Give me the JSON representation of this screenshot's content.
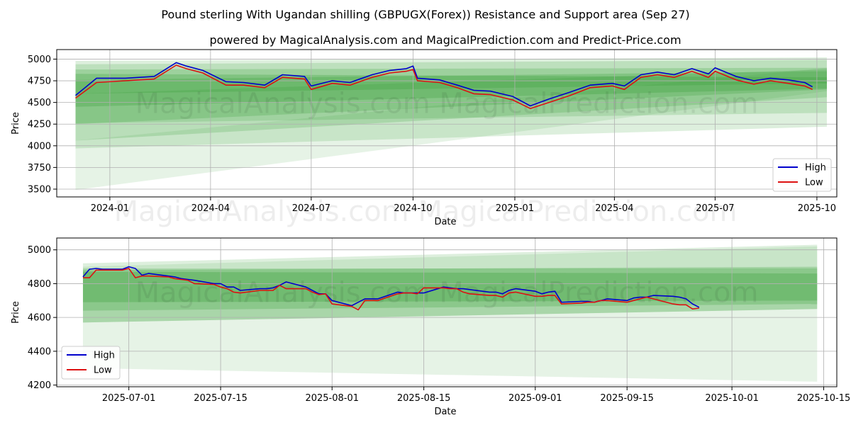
{
  "title": "Pound sterling With Ugandan shilling (GBPUGX(Forex)) Resistance and Support area (Sep 27)",
  "subtitle": "powered by MagicalAnalysis.com and MagicalPrediction.com and Predict-Price.com",
  "watermarks": [
    "MagicalAnalysis.com",
    "MagicalPrediction.com"
  ],
  "colors": {
    "high": "#0000cc",
    "low": "#dd1111",
    "band": "#2e9a2e",
    "grid": "#b0b0b0"
  },
  "chart_data": [
    {
      "type": "line",
      "name": "full-period",
      "xlabel": "Date",
      "ylabel": "Price",
      "x_range": [
        "2023-11-14",
        "2025-10-19"
      ],
      "ylim": [
        3410,
        5110
      ],
      "x_ticks": [
        "2024-01",
        "2024-04",
        "2024-07",
        "2024-10",
        "2025-01",
        "2025-04",
        "2025-07",
        "2025-10"
      ],
      "x_tick_dates": [
        "2024-01-01",
        "2024-04-01",
        "2024-07-01",
        "2024-10-01",
        "2025-01-01",
        "2025-04-01",
        "2025-07-01",
        "2025-10-01"
      ],
      "y_ticks": [
        3500,
        3750,
        4000,
        4250,
        4500,
        4750,
        5000
      ],
      "grid": true,
      "legend": "bottom-right",
      "bands_x": [
        "2023-12-01",
        "2025-10-10"
      ],
      "bands": [
        {
          "start": [
            3490,
            4060
          ],
          "end": [
            4630,
            4900
          ],
          "alpha": 0.12
        },
        {
          "start": [
            3970,
            4980
          ],
          "end": [
            4220,
            5020
          ],
          "alpha": 0.16
        },
        {
          "start": [
            4260,
            4940
          ],
          "end": [
            4380,
            4990
          ],
          "alpha": 0.18
        },
        {
          "start": [
            4060,
            4600
          ],
          "end": [
            4560,
            4880
          ],
          "alpha": 0.2
        },
        {
          "start": [
            4250,
            4880
          ],
          "end": [
            4650,
            4900
          ],
          "alpha": 0.22
        },
        {
          "start": [
            4450,
            4830
          ],
          "end": [
            4660,
            4790
          ],
          "alpha": 0.26
        },
        {
          "start": [
            4600,
            4760
          ],
          "end": [
            4720,
            4860
          ],
          "alpha": 0.24
        }
      ],
      "series": [
        {
          "name": "High",
          "x": [
            "2023-12-01",
            "2023-12-20",
            "2024-01-15",
            "2024-02-10",
            "2024-03-01",
            "2024-03-10",
            "2024-03-25",
            "2024-04-15",
            "2024-05-01",
            "2024-05-20",
            "2024-06-05",
            "2024-06-25",
            "2024-07-01",
            "2024-07-20",
            "2024-08-05",
            "2024-08-25",
            "2024-09-10",
            "2024-09-25",
            "2024-10-01",
            "2024-10-05",
            "2024-10-25",
            "2024-11-10",
            "2024-11-25",
            "2024-12-10",
            "2024-12-30",
            "2025-01-15",
            "2025-02-01",
            "2025-02-20",
            "2025-03-10",
            "2025-03-30",
            "2025-04-10",
            "2025-04-25",
            "2025-05-10",
            "2025-05-25",
            "2025-06-10",
            "2025-06-25",
            "2025-07-01",
            "2025-07-20",
            "2025-08-05",
            "2025-08-20",
            "2025-09-05",
            "2025-09-20",
            "2025-09-27"
          ],
          "values": [
            4580,
            4780,
            4780,
            4800,
            4960,
            4920,
            4870,
            4740,
            4730,
            4700,
            4820,
            4800,
            4690,
            4750,
            4730,
            4820,
            4870,
            4890,
            4920,
            4780,
            4760,
            4700,
            4640,
            4630,
            4570,
            4460,
            4540,
            4620,
            4700,
            4720,
            4690,
            4820,
            4850,
            4820,
            4890,
            4830,
            4900,
            4800,
            4750,
            4780,
            4760,
            4730,
            4680
          ]
        },
        {
          "name": "Low",
          "x": [
            "2023-12-01",
            "2023-12-20",
            "2024-01-15",
            "2024-02-10",
            "2024-03-01",
            "2024-03-10",
            "2024-03-25",
            "2024-04-15",
            "2024-05-01",
            "2024-05-20",
            "2024-06-05",
            "2024-06-25",
            "2024-07-01",
            "2024-07-20",
            "2024-08-05",
            "2024-08-25",
            "2024-09-10",
            "2024-09-25",
            "2024-10-01",
            "2024-10-05",
            "2024-10-25",
            "2024-11-10",
            "2024-11-25",
            "2024-12-10",
            "2024-12-30",
            "2025-01-15",
            "2025-02-01",
            "2025-02-20",
            "2025-03-10",
            "2025-03-30",
            "2025-04-10",
            "2025-04-25",
            "2025-05-10",
            "2025-05-25",
            "2025-06-10",
            "2025-06-25",
            "2025-07-01",
            "2025-07-20",
            "2025-08-05",
            "2025-08-20",
            "2025-09-05",
            "2025-09-20",
            "2025-09-27"
          ],
          "values": [
            4550,
            4730,
            4750,
            4770,
            4930,
            4890,
            4840,
            4700,
            4700,
            4670,
            4790,
            4770,
            4650,
            4720,
            4700,
            4790,
            4840,
            4860,
            4880,
            4750,
            4730,
            4670,
            4600,
            4590,
            4530,
            4430,
            4500,
            4580,
            4670,
            4690,
            4650,
            4790,
            4820,
            4790,
            4860,
            4790,
            4860,
            4760,
            4710,
            4750,
            4720,
            4690,
            4650
          ]
        }
      ]
    },
    {
      "type": "line",
      "name": "recent-period",
      "xlabel": "Date",
      "ylabel": "Price",
      "x_range": [
        "2025-06-20",
        "2025-10-17"
      ],
      "ylim": [
        4190,
        5070
      ],
      "x_ticks": [
        "2025-07-01",
        "2025-07-15",
        "2025-08-01",
        "2025-08-15",
        "2025-09-01",
        "2025-09-15",
        "2025-10-01",
        "2025-10-15"
      ],
      "y_ticks": [
        4200,
        4400,
        4600,
        4800,
        5000
      ],
      "grid": true,
      "legend": "bottom-left",
      "bands_x": [
        "2025-06-24",
        "2025-10-14"
      ],
      "bands": [
        {
          "start": [
            4300,
            4900
          ],
          "end": [
            4220,
            5020
          ],
          "alpha": 0.12
        },
        {
          "start": [
            4570,
            4920
          ],
          "end": [
            4650,
            5030
          ],
          "alpha": 0.16
        },
        {
          "start": [
            4570,
            4890
          ],
          "end": [
            4650,
            4890
          ],
          "alpha": 0.2
        },
        {
          "start": [
            4640,
            4880
          ],
          "end": [
            4680,
            4900
          ],
          "alpha": 0.24
        },
        {
          "start": [
            4690,
            4870
          ],
          "end": [
            4700,
            4860
          ],
          "alpha": 0.28
        }
      ],
      "series": [
        {
          "name": "High",
          "x": [
            "2025-06-24",
            "2025-06-25",
            "2025-06-26",
            "2025-06-27",
            "2025-06-30",
            "2025-07-01",
            "2025-07-02",
            "2025-07-03",
            "2025-07-04",
            "2025-07-07",
            "2025-07-08",
            "2025-07-09",
            "2025-07-10",
            "2025-07-11",
            "2025-07-14",
            "2025-07-15",
            "2025-07-16",
            "2025-07-17",
            "2025-07-18",
            "2025-07-21",
            "2025-07-22",
            "2025-07-23",
            "2025-07-24",
            "2025-07-25",
            "2025-07-28",
            "2025-07-29",
            "2025-07-30",
            "2025-07-31",
            "2025-08-01",
            "2025-08-04",
            "2025-08-05",
            "2025-08-06",
            "2025-08-07",
            "2025-08-08",
            "2025-08-11",
            "2025-08-12",
            "2025-08-13",
            "2025-08-14",
            "2025-08-15",
            "2025-08-18",
            "2025-08-19",
            "2025-08-20",
            "2025-08-21",
            "2025-08-22",
            "2025-08-25",
            "2025-08-26",
            "2025-08-27",
            "2025-08-28",
            "2025-08-29",
            "2025-09-01",
            "2025-09-02",
            "2025-09-03",
            "2025-09-04",
            "2025-09-05",
            "2025-09-08",
            "2025-09-09",
            "2025-09-10",
            "2025-09-11",
            "2025-09-12",
            "2025-09-15",
            "2025-09-16",
            "2025-09-17",
            "2025-09-18",
            "2025-09-19",
            "2025-09-22",
            "2025-09-23",
            "2025-09-24",
            "2025-09-25",
            "2025-09-26"
          ],
          "values": [
            4840,
            4885,
            4890,
            4885,
            4885,
            4900,
            4890,
            4850,
            4860,
            4845,
            4840,
            4830,
            4825,
            4820,
            4800,
            4800,
            4780,
            4780,
            4760,
            4770,
            4770,
            4775,
            4790,
            4810,
            4780,
            4760,
            4740,
            4740,
            4700,
            4670,
            4690,
            4710,
            4710,
            4710,
            4750,
            4745,
            4745,
            4745,
            4745,
            4780,
            4775,
            4770,
            4770,
            4765,
            4750,
            4750,
            4740,
            4760,
            4770,
            4755,
            4740,
            4750,
            4755,
            4690,
            4695,
            4695,
            4690,
            4700,
            4710,
            4700,
            4715,
            4720,
            4720,
            4730,
            4725,
            4720,
            4710,
            4680,
            4660
          ]
        },
        {
          "name": "Low",
          "x": [
            "2025-06-24",
            "2025-06-25",
            "2025-06-26",
            "2025-06-27",
            "2025-06-30",
            "2025-07-01",
            "2025-07-02",
            "2025-07-03",
            "2025-07-04",
            "2025-07-07",
            "2025-07-08",
            "2025-07-09",
            "2025-07-10",
            "2025-07-11",
            "2025-07-14",
            "2025-07-15",
            "2025-07-16",
            "2025-07-17",
            "2025-07-18",
            "2025-07-21",
            "2025-07-22",
            "2025-07-23",
            "2025-07-24",
            "2025-07-25",
            "2025-07-28",
            "2025-07-29",
            "2025-07-30",
            "2025-07-31",
            "2025-08-01",
            "2025-08-04",
            "2025-08-05",
            "2025-08-06",
            "2025-08-07",
            "2025-08-08",
            "2025-08-11",
            "2025-08-12",
            "2025-08-13",
            "2025-08-14",
            "2025-08-15",
            "2025-08-18",
            "2025-08-19",
            "2025-08-20",
            "2025-08-21",
            "2025-08-22",
            "2025-08-25",
            "2025-08-26",
            "2025-08-27",
            "2025-08-28",
            "2025-08-29",
            "2025-09-01",
            "2025-09-02",
            "2025-09-03",
            "2025-09-04",
            "2025-09-05",
            "2025-09-08",
            "2025-09-09",
            "2025-09-10",
            "2025-09-11",
            "2025-09-12",
            "2025-09-15",
            "2025-09-16",
            "2025-09-17",
            "2025-09-18",
            "2025-09-19",
            "2025-09-22",
            "2025-09-23",
            "2025-09-24",
            "2025-09-25",
            "2025-09-26"
          ],
          "values": [
            4835,
            4835,
            4880,
            4880,
            4880,
            4890,
            4835,
            4845,
            4845,
            4840,
            4830,
            4825,
            4820,
            4800,
            4795,
            4780,
            4770,
            4750,
            4745,
            4760,
            4760,
            4760,
            4790,
            4770,
            4770,
            4750,
            4735,
            4740,
            4680,
            4665,
            4645,
            4700,
            4700,
            4700,
            4740,
            4745,
            4745,
            4740,
            4775,
            4775,
            4770,
            4770,
            4750,
            4740,
            4730,
            4730,
            4720,
            4745,
            4750,
            4725,
            4725,
            4730,
            4730,
            4680,
            4685,
            4690,
            4690,
            4700,
            4700,
            4690,
            4700,
            4710,
            4720,
            4710,
            4680,
            4675,
            4675,
            4650,
            4655
          ]
        }
      ]
    }
  ]
}
